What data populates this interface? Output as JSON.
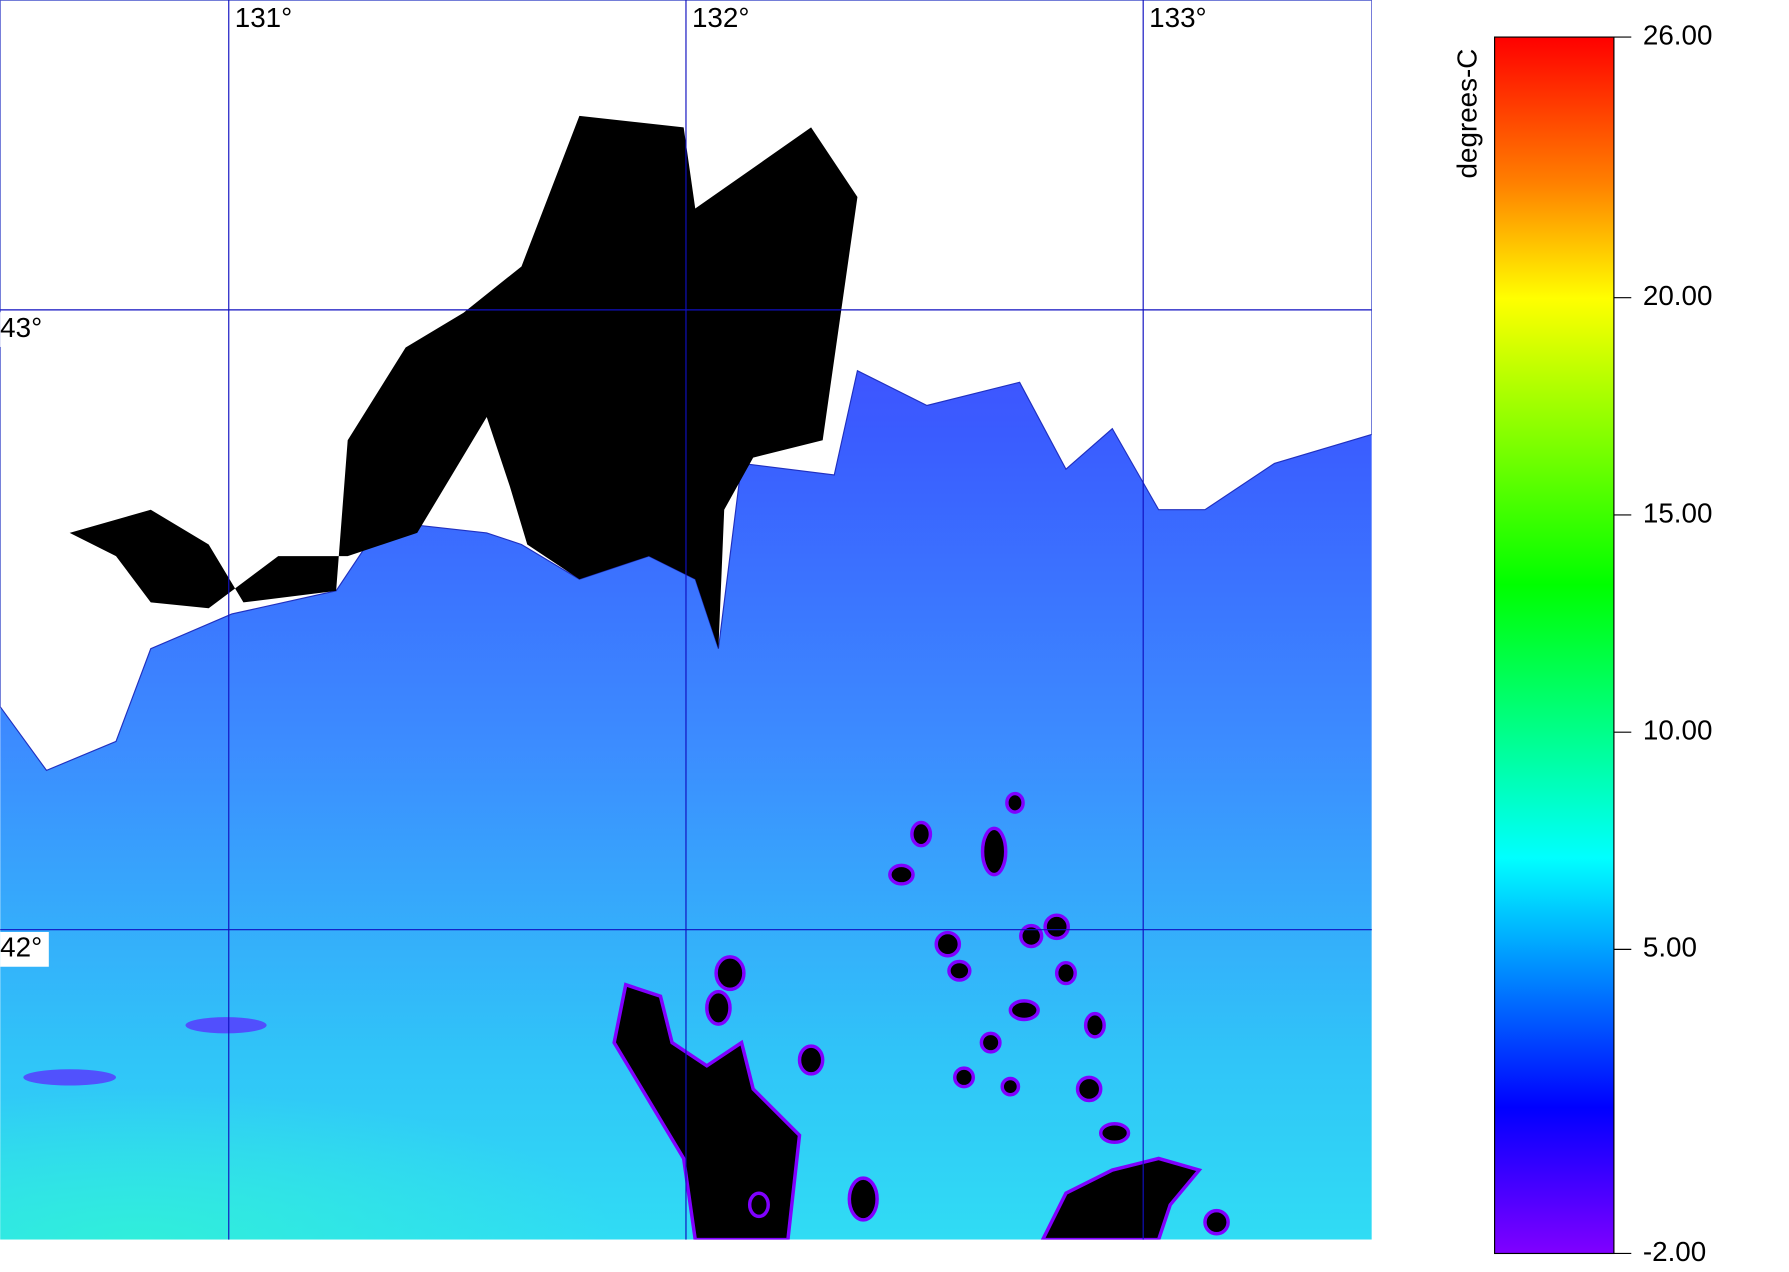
{
  "map": {
    "xlim": [
      130.5,
      133.5
    ],
    "ylim": [
      41.5,
      43.5
    ],
    "xticks": [
      {
        "value": 131,
        "label": "131°"
      },
      {
        "value": 132,
        "label": "132°"
      },
      {
        "value": 133,
        "label": "133°"
      }
    ],
    "yticks": [
      {
        "value": 43,
        "label": "43°"
      },
      {
        "value": 42,
        "label": "42°"
      }
    ]
  },
  "colorbar": {
    "label": "degrees-C",
    "range": [
      -2,
      26
    ],
    "ticks": [
      {
        "value": 26,
        "label": "26.00"
      },
      {
        "value": 20,
        "label": "20.00"
      },
      {
        "value": 15,
        "label": "15.00"
      },
      {
        "value": 10,
        "label": "10.00"
      },
      {
        "value": 5,
        "label": "5.00"
      },
      {
        "value": -2,
        "label": "-2.00"
      }
    ]
  }
}
